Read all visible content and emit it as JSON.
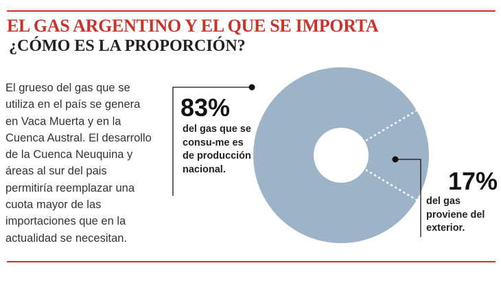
{
  "header": {
    "title": "EL GAS ARGENTINO Y EL QUE SE IMPORTA",
    "subtitle": "¿CÓMO ES LA PROPORCIÓN?"
  },
  "body_text": "El grueso del gas que se utiliza en el país se genera en Vaca Muerta y en la Cuenca Austral.  El desarrollo de la Cuenca Neuquina y áreas al sur del pais permitiría reemplazar una cuota mayor de las importaciones que en la actualidad se necesitan.",
  "colors": {
    "accent": "#c8342b",
    "slice": "#9db3c7"
  },
  "chart_data": {
    "type": "pie",
    "title": "",
    "slices": [
      {
        "label": "83%",
        "value": 83,
        "description": "del gas que se consu-me es de producción nacional."
      },
      {
        "label": "17%",
        "value": 17,
        "description": "del gas proviene del exterior."
      }
    ]
  }
}
